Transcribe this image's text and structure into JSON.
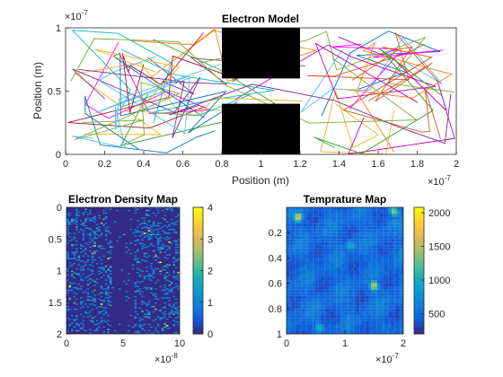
{
  "chart_data": [
    {
      "type": "line",
      "title": "Electron Model",
      "xlabel": "Position (m)",
      "ylabel": "Position (m)",
      "xlim": [
        0,
        2e-07
      ],
      "ylim": [
        0,
        1e-07
      ],
      "x_ticks": [
        "0",
        "0.2",
        "0.4",
        "0.6",
        "0.8",
        "1",
        "1.2",
        "1.4",
        "1.6",
        "1.8",
        "2"
      ],
      "y_ticks": [
        "0",
        "0.5",
        "1"
      ],
      "x_exponent": "×10",
      "x_exponent_power": "-7",
      "y_exponent": "×10",
      "y_exponent_power": "-7",
      "grid": false,
      "obstacles": [
        {
          "x": [
            8e-08,
            1.2e-07
          ],
          "y": [
            6e-08,
            1e-07
          ],
          "color": "#000000"
        },
        {
          "x": [
            8e-08,
            1.2e-07
          ],
          "y": [
            0.0,
            4e-08
          ],
          "color": "#000000"
        }
      ],
      "trajectory_count": 30,
      "trajectory_colors": [
        "#0072bd",
        "#d95319",
        "#edb120",
        "#7e2f8e",
        "#77ac30",
        "#4dbeee",
        "#a2142f",
        "#ff00ff",
        "#00bfbf",
        "#bf00bf",
        "#ff7f0e",
        "#2ca02c"
      ]
    },
    {
      "type": "heatmap",
      "title": "Electron Density Map",
      "xlim": [
        0,
        1e-07
      ],
      "ylim": [
        0,
        2
      ],
      "x_ticks": [
        "0",
        "5",
        "10"
      ],
      "y_ticks": [
        "0",
        "0.5",
        "1",
        "1.5",
        "2"
      ],
      "x_exponent": "×10",
      "x_exponent_power": "-8",
      "colorbar_range": [
        0,
        4
      ],
      "colorbar_ticks": [
        "0",
        "1",
        "2",
        "3",
        "4"
      ],
      "colormap": "parula",
      "grid_size": [
        50,
        100
      ]
    },
    {
      "type": "heatmap",
      "title": "Temprature Map",
      "xlim": [
        0,
        2e-07
      ],
      "ylim": [
        0,
        1
      ],
      "x_ticks": [
        "0",
        "1",
        "2"
      ],
      "y_ticks": [
        "0.2",
        "0.4",
        "0.6",
        "0.8",
        "1"
      ],
      "x_exponent": "×10",
      "x_exponent_power": "-7",
      "colorbar_range": [
        0,
        2000
      ],
      "colorbar_ticks": [
        "500",
        "1000",
        "1500",
        "2000"
      ],
      "colormap": "parula",
      "grid_size": [
        40,
        40
      ]
    }
  ]
}
